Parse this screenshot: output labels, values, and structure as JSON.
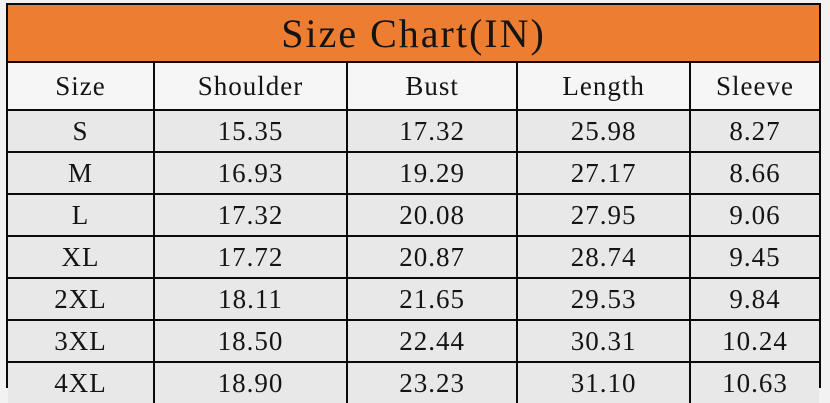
{
  "title": "Size Chart(IN)",
  "colors": {
    "title_bg": "#ed7d31",
    "border": "#0a0a0a",
    "cell_bg": "#e8e8e8",
    "header_bg": "#f6f6f6",
    "text": "#141414"
  },
  "chart_data": {
    "type": "table",
    "title": "Size Chart(IN)",
    "columns": [
      "Size",
      "Shoulder",
      "Bust",
      "Length",
      "Sleeve"
    ],
    "rows": [
      [
        "S",
        "15.35",
        "17.32",
        "25.98",
        "8.27"
      ],
      [
        "M",
        "16.93",
        "19.29",
        "27.17",
        "8.66"
      ],
      [
        "L",
        "17.32",
        "20.08",
        "27.95",
        "9.06"
      ],
      [
        "XL",
        "17.72",
        "20.87",
        "28.74",
        "9.45"
      ],
      [
        "2XL",
        "18.11",
        "21.65",
        "29.53",
        "9.84"
      ],
      [
        "3XL",
        "18.50",
        "22.44",
        "30.31",
        "10.24"
      ],
      [
        "4XL",
        "18.90",
        "23.23",
        "31.10",
        "10.63"
      ]
    ]
  }
}
